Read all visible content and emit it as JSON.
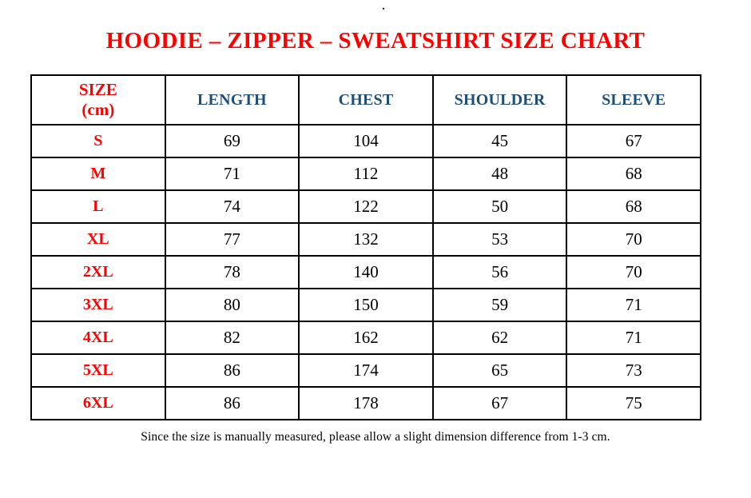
{
  "page": {
    "top_mark": ".",
    "title": "HOODIE – ZIPPER – SWEATSHIRT SIZE CHART",
    "footer_note": "Since the size is manually measured, please allow a slight dimension difference from 1-3 cm."
  },
  "colors": {
    "accent_red": "#fe0000",
    "header_blue": "#1f4e79",
    "border_black": "#000000"
  },
  "table": {
    "header": {
      "size_label": "SIZE",
      "size_unit": "(cm)",
      "columns": [
        "LENGTH",
        "CHEST",
        "SHOULDER",
        "SLEEVE"
      ]
    },
    "rows": [
      {
        "size": "S",
        "values": [
          69,
          104,
          45,
          67
        ]
      },
      {
        "size": "M",
        "values": [
          71,
          112,
          48,
          68
        ]
      },
      {
        "size": "L",
        "values": [
          74,
          122,
          50,
          68
        ]
      },
      {
        "size": "XL",
        "values": [
          77,
          132,
          53,
          70
        ]
      },
      {
        "size": "2XL",
        "values": [
          78,
          140,
          56,
          70
        ]
      },
      {
        "size": "3XL",
        "values": [
          80,
          150,
          59,
          71
        ]
      },
      {
        "size": "4XL",
        "values": [
          82,
          162,
          62,
          71
        ]
      },
      {
        "size": "5XL",
        "values": [
          86,
          174,
          65,
          73
        ]
      },
      {
        "size": "6XL",
        "values": [
          86,
          178,
          67,
          75
        ]
      }
    ]
  }
}
